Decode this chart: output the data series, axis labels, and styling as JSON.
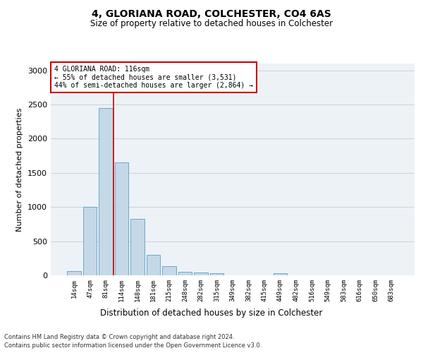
{
  "title1": "4, GLORIANA ROAD, COLCHESTER, CO4 6AS",
  "title2": "Size of property relative to detached houses in Colchester",
  "xlabel": "Distribution of detached houses by size in Colchester",
  "ylabel": "Number of detached properties",
  "footer1": "Contains HM Land Registry data © Crown copyright and database right 2024.",
  "footer2": "Contains public sector information licensed under the Open Government Licence v3.0.",
  "annotation_line1": "4 GLORIANA ROAD: 116sqm",
  "annotation_line2": "← 55% of detached houses are smaller (3,531)",
  "annotation_line3": "44% of semi-detached houses are larger (2,864) →",
  "bar_labels": [
    "14sqm",
    "47sqm",
    "81sqm",
    "114sqm",
    "148sqm",
    "181sqm",
    "215sqm",
    "248sqm",
    "282sqm",
    "315sqm",
    "349sqm",
    "382sqm",
    "415sqm",
    "449sqm",
    "482sqm",
    "516sqm",
    "549sqm",
    "583sqm",
    "616sqm",
    "650sqm",
    "683sqm"
  ],
  "bar_values": [
    60,
    1000,
    2450,
    1650,
    830,
    300,
    130,
    55,
    45,
    30,
    0,
    0,
    0,
    30,
    0,
    0,
    0,
    0,
    0,
    0,
    0
  ],
  "bar_color": "#c5d8e8",
  "bar_edge_color": "#5a9fc2",
  "grid_color": "#cccccc",
  "bg_color": "#edf2f7",
  "red_line_color": "#cc0000",
  "annotation_box_color": "#cc0000",
  "ylim": [
    0,
    3100
  ],
  "yticks": [
    0,
    500,
    1000,
    1500,
    2000,
    2500,
    3000
  ]
}
